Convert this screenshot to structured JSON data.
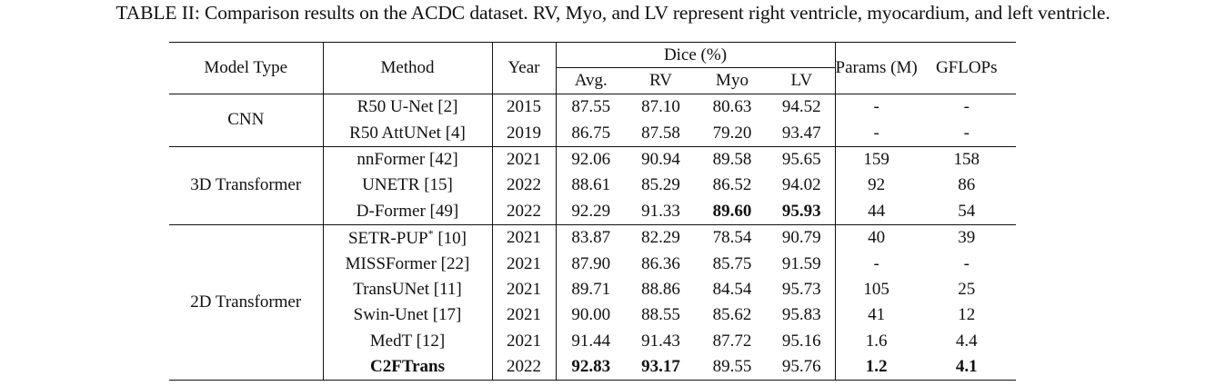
{
  "caption": "TABLE II: Comparison results on the ACDC dataset. RV, Myo, and LV represent right ventricle, myocardium, and left ventricle.",
  "headers": {
    "model_type": "Model Type",
    "method": "Method",
    "year": "Year",
    "dice": "Dice (%)",
    "avg": "Avg.",
    "rv": "RV",
    "myo": "Myo",
    "lv": "LV",
    "params": "Params (M)",
    "gflops": "GFLOPs"
  },
  "groups": [
    {
      "model_type": "CNN",
      "rows": [
        {
          "method": "R50 U-Net [2]",
          "year": "2015",
          "avg": "87.55",
          "rv": "87.10",
          "myo": "80.63",
          "lv": "94.52",
          "params": "-",
          "gflops": "-"
        },
        {
          "method": "R50 AttUNet [4]",
          "year": "2019",
          "avg": "86.75",
          "rv": "87.58",
          "myo": "79.20",
          "lv": "93.47",
          "params": "-",
          "gflops": "-"
        }
      ]
    },
    {
      "model_type": "3D Transformer",
      "rows": [
        {
          "method": "nnFormer [42]",
          "year": "2021",
          "avg": "92.06",
          "rv": "90.94",
          "myo": "89.58",
          "lv": "95.65",
          "params": "159",
          "gflops": "158"
        },
        {
          "method": "UNETR [15]",
          "year": "2022",
          "avg": "88.61",
          "rv": "85.29",
          "myo": "86.52",
          "lv": "94.02",
          "params": "92",
          "gflops": "86"
        },
        {
          "method": "D-Former [49]",
          "year": "2022",
          "avg": "92.29",
          "rv": "91.33",
          "myo": "89.60",
          "lv": "95.93",
          "params": "44",
          "gflops": "54"
        }
      ]
    },
    {
      "model_type": "2D Transformer",
      "rows": [
        {
          "method_main": "SETR-PUP",
          "method_sup": "*",
          "method_ref": " [10]",
          "year": "2021",
          "avg": "83.87",
          "rv": "82.29",
          "myo": "78.54",
          "lv": "90.79",
          "params": "40",
          "gflops": "39"
        },
        {
          "method": "MISSFormer [22]",
          "year": "2021",
          "avg": "87.90",
          "rv": "86.36",
          "myo": "85.75",
          "lv": "91.59",
          "params": "-",
          "gflops": "-"
        },
        {
          "method": "TransUNet [11]",
          "year": "2021",
          "avg": "89.71",
          "rv": "88.86",
          "myo": "84.54",
          "lv": "95.73",
          "params": "105",
          "gflops": "25"
        },
        {
          "method": "Swin-Unet [17]",
          "year": "2021",
          "avg": "90.00",
          "rv": "88.55",
          "myo": "85.62",
          "lv": "95.83",
          "params": "41",
          "gflops": "12"
        },
        {
          "method": "MedT [12]",
          "year": "2021",
          "avg": "91.44",
          "rv": "91.43",
          "myo": "87.72",
          "lv": "95.16",
          "params": "1.6",
          "gflops": "4.4"
        },
        {
          "method": "C2FTrans",
          "year": "2022",
          "avg": "92.83",
          "rv": "93.17",
          "myo": "89.55",
          "lv": "95.76",
          "params": "1.2",
          "gflops": "4.1"
        }
      ]
    }
  ]
}
